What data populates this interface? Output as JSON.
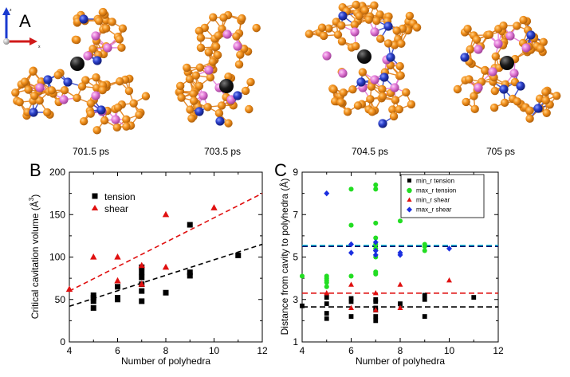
{
  "panelA": {
    "label": "A",
    "axis_x": "x",
    "axis_z": "z",
    "snapshots": [
      {
        "time": "701.5 ps"
      },
      {
        "time": "703.5 ps"
      },
      {
        "time": "704.5 ps"
      },
      {
        "time": "705 ps"
      }
    ],
    "colors": {
      "orange": "#f2901c",
      "pink": "#e37ad8",
      "blue": "#2a3fc8",
      "black": "#111111",
      "bond": "#e07d16"
    }
  },
  "chart_data": [
    {
      "panel": "B",
      "type": "scatter",
      "xlabel": "Number of polyhedra",
      "ylabel": "Critical cavitation volume (Å³)",
      "ylabel_main": "Critical cavitation volume (Å",
      "ylabel_sup": "3",
      "ylabel_end": ")",
      "xlim": [
        4,
        12
      ],
      "ylim": [
        0,
        200
      ],
      "xticks": [
        4,
        6,
        8,
        10,
        12
      ],
      "yticks": [
        0,
        50,
        100,
        150,
        200
      ],
      "legend_position": "top-left",
      "series": [
        {
          "name": "tension",
          "marker": "square",
          "color": "#000000",
          "points": [
            [
              5,
              40
            ],
            [
              5,
              48
            ],
            [
              5,
              52
            ],
            [
              5,
              55
            ],
            [
              6,
              50
            ],
            [
              6,
              52
            ],
            [
              6,
              65
            ],
            [
              7,
              48
            ],
            [
              7,
              60
            ],
            [
              7,
              68
            ],
            [
              7,
              76
            ],
            [
              7,
              82
            ],
            [
              7,
              88
            ],
            [
              8,
              58
            ],
            [
              9,
              78
            ],
            [
              9,
              82
            ],
            [
              9,
              138
            ],
            [
              11,
              102
            ]
          ]
        },
        {
          "name": "shear",
          "marker": "triangle",
          "color": "#e01010",
          "points": [
            [
              4,
              62
            ],
            [
              5,
              100
            ],
            [
              6,
              72
            ],
            [
              6,
              100
            ],
            [
              7,
              68
            ],
            [
              7,
              90
            ],
            [
              8,
              88
            ],
            [
              8,
              150
            ],
            [
              10,
              158
            ]
          ]
        }
      ],
      "fits": [
        {
          "series": "tension",
          "color": "#000000",
          "dash": true,
          "x": [
            4,
            12
          ],
          "y": [
            42,
            115
          ]
        },
        {
          "series": "shear",
          "color": "#e01010",
          "dash": true,
          "x": [
            4,
            12
          ],
          "y": [
            60,
            175
          ]
        }
      ]
    },
    {
      "panel": "C",
      "type": "scatter",
      "xlabel": "Number of polyhedra",
      "ylabel": "Distance from cavity to polyhedra (Å)",
      "xlim": [
        4,
        12
      ],
      "ylim": [
        1,
        9
      ],
      "xticks": [
        4,
        6,
        8,
        10,
        12
      ],
      "yticks": [
        1,
        3,
        5,
        7,
        9
      ],
      "legend_position": "top-right",
      "series": [
        {
          "name": "min_r tension",
          "marker": "square",
          "color": "#000000",
          "points": [
            [
              4,
              2.7
            ],
            [
              5,
              2.1
            ],
            [
              5,
              2.35
            ],
            [
              5,
              2.8
            ],
            [
              5,
              3.1
            ],
            [
              6,
              2.2
            ],
            [
              6,
              2.9
            ],
            [
              6,
              3.05
            ],
            [
              7,
              2.0
            ],
            [
              7,
              2.2
            ],
            [
              7,
              2.5
            ],
            [
              7,
              2.6
            ],
            [
              7,
              2.9
            ],
            [
              7,
              3.0
            ],
            [
              8,
              2.8
            ],
            [
              9,
              2.2
            ],
            [
              9,
              3.0
            ],
            [
              9,
              3.2
            ],
            [
              11,
              3.1
            ]
          ]
        },
        {
          "name": "max_r tension",
          "marker": "circle",
          "color": "#22dd22",
          "points": [
            [
              4,
              4.1
            ],
            [
              5,
              3.6
            ],
            [
              5,
              3.8
            ],
            [
              5,
              3.9
            ],
            [
              5,
              4.0
            ],
            [
              5,
              4.1
            ],
            [
              6,
              4.1
            ],
            [
              6,
              6.5
            ],
            [
              6,
              8.2
            ],
            [
              7,
              4.2
            ],
            [
              7,
              4.3
            ],
            [
              7,
              5.0
            ],
            [
              7,
              5.4
            ],
            [
              7,
              5.6
            ],
            [
              7,
              5.9
            ],
            [
              7,
              6.6
            ],
            [
              7,
              8.2
            ],
            [
              7,
              8.4
            ],
            [
              8,
              6.7
            ],
            [
              9,
              5.3
            ],
            [
              9,
              5.5
            ],
            [
              9,
              5.6
            ],
            [
              11,
              7.2
            ]
          ]
        },
        {
          "name": "min_r shear",
          "marker": "triangle",
          "color": "#e01010",
          "points": [
            [
              5,
              3.3
            ],
            [
              6,
              2.6
            ],
            [
              6,
              3.7
            ],
            [
              7,
              2.5
            ],
            [
              7,
              3.3
            ],
            [
              8,
              2.6
            ],
            [
              8,
              3.7
            ],
            [
              10,
              3.9
            ]
          ]
        },
        {
          "name": "max_r shear",
          "marker": "diamond",
          "color": "#1a2ee0",
          "points": [
            [
              5,
              8.0
            ],
            [
              6,
              5.2
            ],
            [
              6,
              5.6
            ],
            [
              7,
              5.1
            ],
            [
              7,
              5.3
            ],
            [
              7,
              5.7
            ],
            [
              8,
              5.1
            ],
            [
              8,
              5.2
            ],
            [
              10,
              5.4
            ]
          ]
        }
      ],
      "hlines": [
        {
          "series": "max_r tension",
          "y": 5.55,
          "color": "#1ecbe0"
        },
        {
          "series": "max_r shear",
          "y": 5.5,
          "color": "#10106a"
        },
        {
          "series": "min_r shear",
          "y": 3.3,
          "color": "#e01010"
        },
        {
          "series": "min_r tension",
          "y": 2.65,
          "color": "#000000"
        }
      ]
    }
  ]
}
